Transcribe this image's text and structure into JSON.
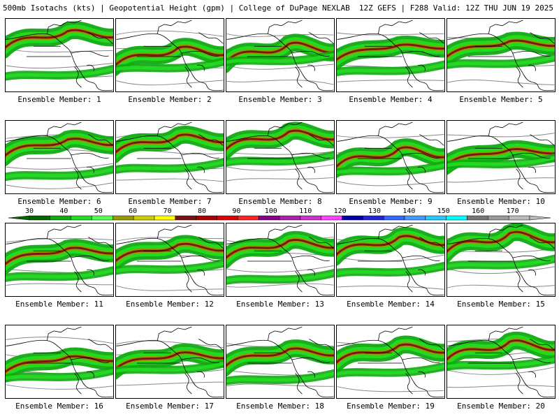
{
  "header": {
    "left": "500mb Isotachs (kts) | Geopotential Height (gpm) | College of DuPage NEXLAB",
    "right": "12Z GEFS | F288 Valid: 12Z THU JUN 19 2025"
  },
  "panel_label_prefix": "Ensemble Member: ",
  "members": [
    "1",
    "2",
    "3",
    "4",
    "5",
    "6",
    "7",
    "8",
    "9",
    "10",
    "11",
    "12",
    "13",
    "14",
    "15",
    "16",
    "17",
    "18",
    "19",
    "20"
  ],
  "colorbar": {
    "ticks": [
      "30",
      "40",
      "50",
      "60",
      "70",
      "80",
      "90",
      "100",
      "110",
      "120",
      "130",
      "140",
      "150",
      "160",
      "170"
    ],
    "colors": [
      "#006600",
      "#11aa11",
      "#22dd22",
      "#55ff55",
      "#999900",
      "#cccc00",
      "#ffff00",
      "#7a1010",
      "#aa0000",
      "#dd0000",
      "#ff2222",
      "#880088",
      "#aa22aa",
      "#cc33cc",
      "#ff44ff",
      "#0000aa",
      "#2222dd",
      "#3366ff",
      "#4499ff",
      "#22ccff",
      "#00ffff",
      "#777777",
      "#999999",
      "#bbbbbb"
    ]
  }
}
